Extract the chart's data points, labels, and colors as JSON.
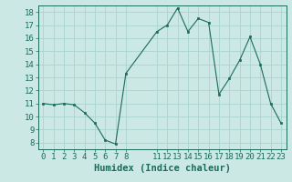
{
  "x": [
    0,
    1,
    2,
    3,
    4,
    5,
    6,
    7,
    8,
    11,
    12,
    13,
    14,
    15,
    16,
    17,
    18,
    19,
    20,
    21,
    22,
    23
  ],
  "y": [
    11,
    10.9,
    11,
    10.9,
    10.3,
    9.5,
    8.2,
    7.9,
    13.3,
    16.5,
    17.0,
    18.3,
    16.5,
    17.5,
    17.2,
    11.7,
    12.9,
    14.3,
    16.1,
    14.0,
    11.0,
    9.5
  ],
  "line_color": "#1a6b5a",
  "marker_color": "#1a6b5a",
  "bg_color": "#cce8e4",
  "grid_color": "#aad4cf",
  "xlabel": "Humidex (Indice chaleur)",
  "xlim": [
    -0.5,
    23.5
  ],
  "ylim": [
    7.5,
    18.5
  ],
  "yticks": [
    8,
    9,
    10,
    11,
    12,
    13,
    14,
    15,
    16,
    17,
    18
  ],
  "xticks": [
    0,
    1,
    2,
    3,
    4,
    5,
    6,
    7,
    8,
    11,
    12,
    13,
    14,
    15,
    16,
    17,
    18,
    19,
    20,
    21,
    22,
    23
  ],
  "tick_fontsize": 6.5,
  "xlabel_fontsize": 7.5
}
